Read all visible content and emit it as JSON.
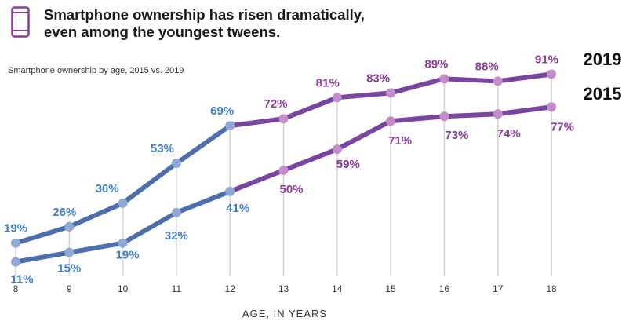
{
  "title": {
    "line1": "Smartphone ownership has risen dramatically,",
    "line2": "even among the youngest tweens."
  },
  "subtitle": "Smartphone ownership by age, 2015 vs. 2019",
  "icons": {
    "header": "smartphone-icon"
  },
  "colors": {
    "blue": "#3f7fc4",
    "purple": "#8a3c9a",
    "line_blue": "#4d6fb0",
    "line_purple": "#7a45a0",
    "grid": "#d3d3d3"
  },
  "chart_data": {
    "type": "line",
    "x": [
      8,
      9,
      10,
      11,
      12,
      13,
      14,
      15,
      16,
      17,
      18
    ],
    "xlabel": "AGE, IN YEARS",
    "ylabel": "",
    "ylim": [
      0,
      100
    ],
    "grid": "vertical",
    "series": [
      {
        "name": "2019",
        "values": [
          19,
          26,
          36,
          53,
          69,
          72,
          81,
          83,
          89,
          88,
          91
        ],
        "labels": [
          "19%",
          "26%",
          "36%",
          "53%",
          "69%",
          "72%",
          "81%",
          "83%",
          "89%",
          "88%",
          "91%"
        ]
      },
      {
        "name": "2015",
        "values": [
          11,
          15,
          19,
          32,
          41,
          50,
          59,
          71,
          73,
          74,
          77
        ],
        "labels": [
          "11%",
          "15%",
          "19%",
          "32%",
          "41%",
          "50%",
          "59%",
          "71%",
          "73%",
          "74%",
          "77%"
        ]
      }
    ]
  }
}
